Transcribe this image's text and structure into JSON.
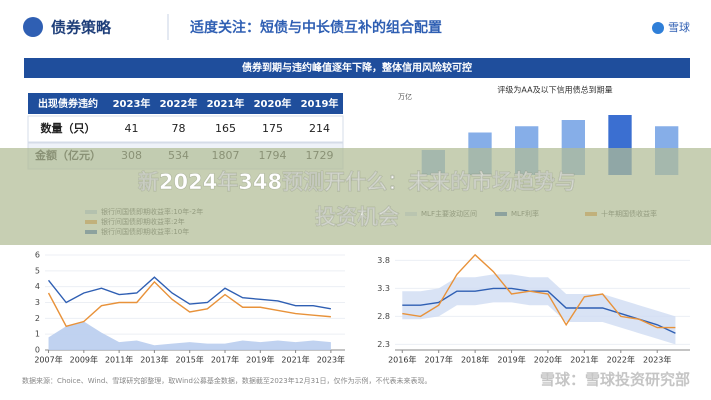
{
  "header": {
    "section": "债券策略",
    "title": "适度关注：短债与中长债互补的组合配置",
    "brand": "雪球"
  },
  "banner": "债券到期与违约峰值逐年下降，整体信用风险较可控",
  "table": {
    "header": [
      "出现债券违约",
      "2023年",
      "2022年",
      "2021年",
      "2020年",
      "2019年"
    ],
    "rows": [
      [
        "数量（只）",
        "41",
        "78",
        "165",
        "175",
        "214"
      ],
      [
        "金额（亿元）",
        "308",
        "534",
        "1807",
        "1794",
        "1729"
      ]
    ]
  },
  "overlay_title": [
    "新2024年348预测开什么：未来的市场趋势与",
    "投资机会"
  ],
  "footer": "数据来源：Choice、Wind、雪球研究部整理，取Wind公募基金数据，数据截至2023年12月31日，仅作为示例，不代表未来表现。",
  "watermark": "雪球：雪球投资研究部",
  "chart_data": [
    {
      "type": "bar",
      "title": "评级为AA及以下信用债总到期量",
      "unit": "万亿",
      "categories": [
        null,
        null,
        null,
        null,
        null,
        null
      ],
      "values": [
        1.0,
        1.7,
        1.95,
        2.2,
        2.4,
        1.95
      ],
      "colors": [
        "#86aee8",
        "#86aee8",
        "#86aee8",
        "#86aee8",
        "#3b6fd1",
        "#86aee8"
      ],
      "ylim": [
        0,
        3
      ]
    },
    {
      "type": "line",
      "x": [
        2007,
        2008,
        2009,
        2010,
        2011,
        2012,
        2013,
        2014,
        2015,
        2016,
        2017,
        2018,
        2019,
        2020,
        2021,
        2022,
        2023
      ],
      "series": [
        {
          "name": "银行间国债即期收益率:10年-2年",
          "color": "#b9cdee",
          "style": "area",
          "values": [
            0.8,
            1.5,
            1.8,
            1.1,
            0.5,
            0.6,
            0.3,
            0.4,
            0.5,
            0.4,
            0.4,
            0.6,
            0.5,
            0.6,
            0.5,
            0.6,
            0.5
          ]
        },
        {
          "name": "银行间国债即期收益率:2年",
          "color": "#e8923a",
          "style": "line",
          "values": [
            3.6,
            1.5,
            1.8,
            2.8,
            3.0,
            3.0,
            4.3,
            3.2,
            2.4,
            2.6,
            3.5,
            2.7,
            2.7,
            2.5,
            2.3,
            2.2,
            2.1
          ]
        },
        {
          "name": "银行间国债即期收益率:10年",
          "color": "#2f5fb3",
          "style": "line",
          "values": [
            4.4,
            3.0,
            3.6,
            3.9,
            3.5,
            3.6,
            4.6,
            3.6,
            2.9,
            3.0,
            3.9,
            3.3,
            3.2,
            3.1,
            2.8,
            2.8,
            2.6
          ]
        }
      ],
      "xlim": [
        2006.8,
        2023.8
      ],
      "xticks": [
        {
          "value": 2007,
          "label": "2007年"
        },
        {
          "value": 2009,
          "label": "2009年"
        },
        {
          "value": 2011,
          "label": "2011年"
        },
        {
          "value": 2013,
          "label": "2013年"
        },
        {
          "value": 2015,
          "label": "2015年"
        },
        {
          "value": 2017,
          "label": "2017年"
        },
        {
          "value": 2019,
          "label": "2019年"
        },
        {
          "value": 2021,
          "label": "2021年"
        },
        {
          "value": 2023,
          "label": "2023年"
        }
      ],
      "ylim": [
        0,
        6
      ],
      "yticks": [
        0,
        1,
        2,
        3,
        4,
        5,
        6
      ]
    },
    {
      "type": "line",
      "x": [
        2016,
        2016.5,
        2017,
        2017.5,
        2018,
        2018.5,
        2019,
        2019.5,
        2020,
        2020.5,
        2021,
        2021.5,
        2022,
        2022.5,
        2023,
        2023.5
      ],
      "series": [
        {
          "name": "MLF主要波动区间",
          "color": "#cfdcf3",
          "style": "band",
          "low": [
            2.75,
            2.75,
            2.8,
            3.0,
            3.0,
            3.05,
            3.05,
            3.0,
            3.0,
            2.7,
            2.7,
            2.7,
            2.6,
            2.5,
            2.4,
            2.3
          ],
          "high": [
            3.25,
            3.25,
            3.3,
            3.5,
            3.5,
            3.55,
            3.55,
            3.5,
            3.5,
            3.2,
            3.2,
            3.2,
            3.1,
            3.0,
            2.9,
            2.8
          ]
        },
        {
          "name": "MLF利率",
          "color": "#2f5fb3",
          "style": "line",
          "values": [
            3.0,
            3.0,
            3.05,
            3.25,
            3.25,
            3.3,
            3.3,
            3.25,
            3.25,
            2.95,
            2.95,
            2.95,
            2.85,
            2.75,
            2.65,
            2.5
          ]
        },
        {
          "name": "十年期国债收益率",
          "color": "#e8923a",
          "style": "line",
          "values": [
            2.85,
            2.8,
            3.0,
            3.55,
            3.9,
            3.6,
            3.2,
            3.25,
            3.2,
            2.65,
            3.15,
            3.2,
            2.8,
            2.75,
            2.6,
            2.6
          ]
        }
      ],
      "xlim": [
        2015.8,
        2023.9
      ],
      "xticks": [
        {
          "value": 2016,
          "label": "2016年"
        },
        {
          "value": 2017,
          "label": "2017年"
        },
        {
          "value": 2018,
          "label": "2018年"
        },
        {
          "value": 2019,
          "label": "2019年"
        },
        {
          "value": 2020,
          "label": "2020年"
        },
        {
          "value": 2021,
          "label": "2021年"
        },
        {
          "value": 2022,
          "label": "2022年"
        },
        {
          "value": 2023,
          "label": "2023年"
        }
      ],
      "ylim": [
        2.2,
        3.95
      ],
      "yticks": [
        2.3,
        2.8,
        3.3,
        3.8
      ]
    }
  ]
}
